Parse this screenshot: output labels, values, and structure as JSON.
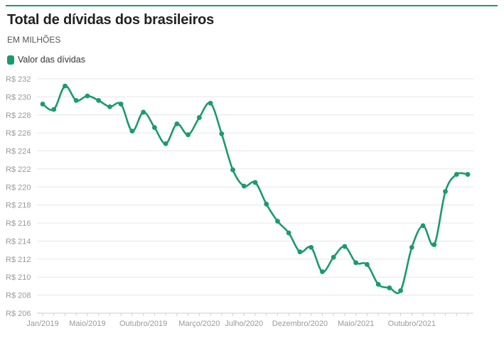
{
  "header": {
    "title": "Total de dívidas dos brasileiros",
    "subtitle": "EM MILHÕES"
  },
  "legend": {
    "label": "Valor das dívidas",
    "color": "#1a9b6c"
  },
  "chart_data": {
    "type": "line",
    "title": "Total de dívidas dos brasileiros",
    "subtitle": "EM MILHÕES",
    "ylim": [
      206,
      232
    ],
    "y_ticks": [
      206,
      208,
      210,
      212,
      214,
      216,
      218,
      220,
      222,
      224,
      226,
      228,
      230,
      232
    ],
    "y_tick_labels": [
      "R$ 206",
      "R$ 208",
      "R$ 210",
      "R$ 212",
      "R$ 214",
      "R$ 216",
      "R$ 218",
      "R$ 220",
      "R$ 222",
      "R$ 224",
      "R$ 226",
      "R$ 228",
      "R$ 230",
      "R$ 232"
    ],
    "x_tick_labels": [
      "Jan/2019",
      "Maio/2019",
      "Outubro/2019",
      "Março/2020",
      "Julho/2020",
      "Dezembro/2020",
      "Maio/2021",
      "Outubro/2021"
    ],
    "x_tick_index": [
      0,
      4,
      9,
      14,
      18,
      23,
      28,
      33
    ],
    "grid": true,
    "legend_position": "top-left",
    "series": [
      {
        "name": "Valor das dívidas",
        "color": "#1a9b6c",
        "x": [
          "Jan/2019",
          "Fev/2019",
          "Mar/2019",
          "Abr/2019",
          "Mai/2019",
          "Jun/2019",
          "Jul/2019",
          "Ago/2019",
          "Set/2019",
          "Out/2019",
          "Nov/2019",
          "Dez/2019",
          "Jan/2020",
          "Fev/2020",
          "Mar/2020",
          "Abr/2020",
          "Mai/2020",
          "Jun/2020",
          "Jul/2020",
          "Ago/2020",
          "Set/2020",
          "Out/2020",
          "Nov/2020",
          "Dez/2020",
          "Jan/2021",
          "Fev/2021",
          "Mar/2021",
          "Abr/2021",
          "Mai/2021",
          "Jun/2021",
          "Jul/2021",
          "Ago/2021",
          "Set/2021",
          "Out/2021",
          "Nov/2021",
          "Dez/2021",
          "Jan/2022",
          "Fev/2022",
          "Mar/2022"
        ],
        "values": [
          229.2,
          228.6,
          231.2,
          229.6,
          230.1,
          229.6,
          228.9,
          229.2,
          226.2,
          228.3,
          226.6,
          224.8,
          227.0,
          225.8,
          227.7,
          229.3,
          225.9,
          221.9,
          220.1,
          220.5,
          218.1,
          216.2,
          214.9,
          212.8,
          213.3,
          210.6,
          212.2,
          213.4,
          211.6,
          211.4,
          209.2,
          208.8,
          208.5,
          213.3,
          215.7,
          213.6,
          219.5,
          221.4,
          221.4
        ]
      }
    ]
  }
}
